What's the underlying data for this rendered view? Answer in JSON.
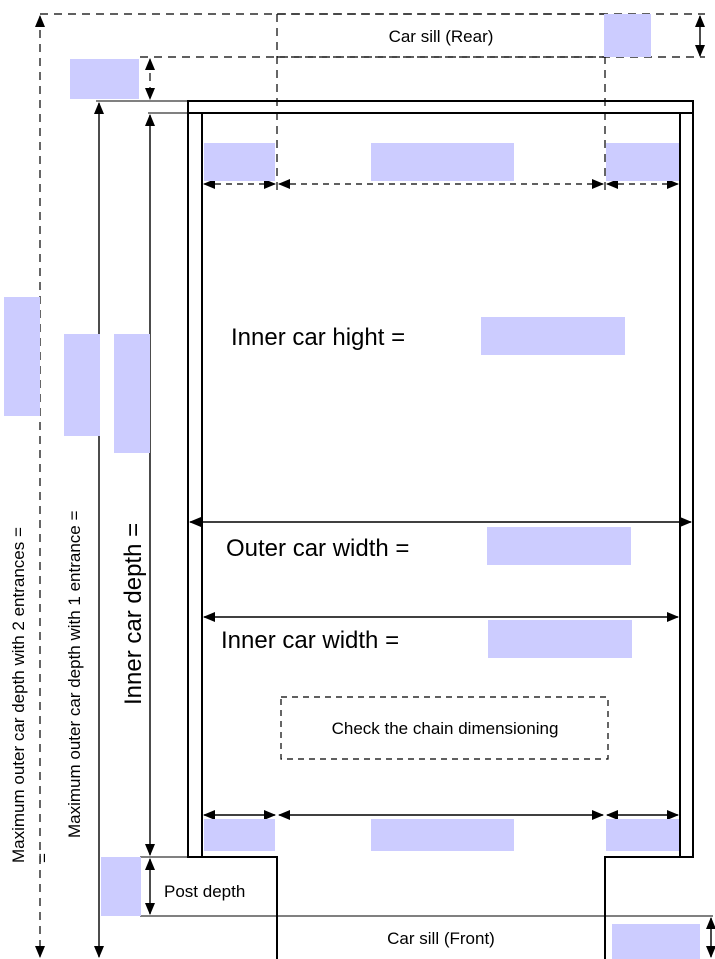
{
  "labels": {
    "car_sill_rear": "Car sill (Rear)",
    "car_sill_front": "Car sill (Front)",
    "inner_car_height": "Inner car hight =",
    "outer_car_width": "Outer car width =",
    "inner_car_width": "Inner car width =",
    "check_chain": "Check the chain dimensioning",
    "inner_car_depth": "Inner car depth =",
    "max_outer_depth_1": "Maximum outer car depth with 1 entrance =",
    "max_outer_depth_2": "Maximum outer car depth with 2 entrances =",
    "equals_sign": "=",
    "post_depth": "Post depth"
  },
  "colors": {
    "input_fill": "#ccccff",
    "line": "#000000"
  }
}
